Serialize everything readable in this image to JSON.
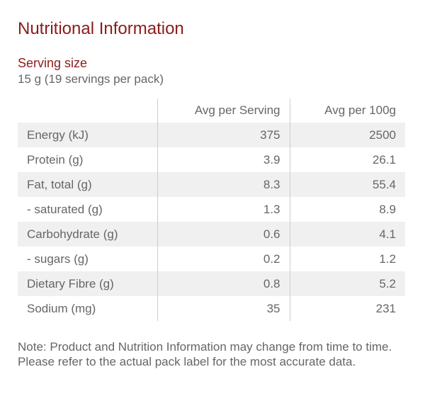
{
  "header": {
    "title": "Nutritional Information"
  },
  "serving": {
    "label": "Serving size",
    "text": "15 g (19 servings per pack)"
  },
  "table": {
    "columns": [
      "Avg per Serving",
      "Avg per 100g"
    ],
    "rows": [
      [
        "Energy (kJ)",
        375,
        2500
      ],
      [
        "Protein (g)",
        3.9,
        26.1
      ],
      [
        "Fat, total (g)",
        8.3,
        55.4
      ],
      [
        "- saturated (g)",
        1.3,
        8.9
      ],
      [
        "Carbohydrate (g)",
        0.6,
        4.1
      ],
      [
        "- sugars (g)",
        0.2,
        1.2
      ],
      [
        "Dietary Fibre (g)",
        0.8,
        5.2
      ],
      [
        "Sodium (mg)",
        35,
        231
      ]
    ]
  },
  "note": "Note: Product and Nutrition Information may change from time to time. Please refer to the actual pack label for the most accurate data."
}
